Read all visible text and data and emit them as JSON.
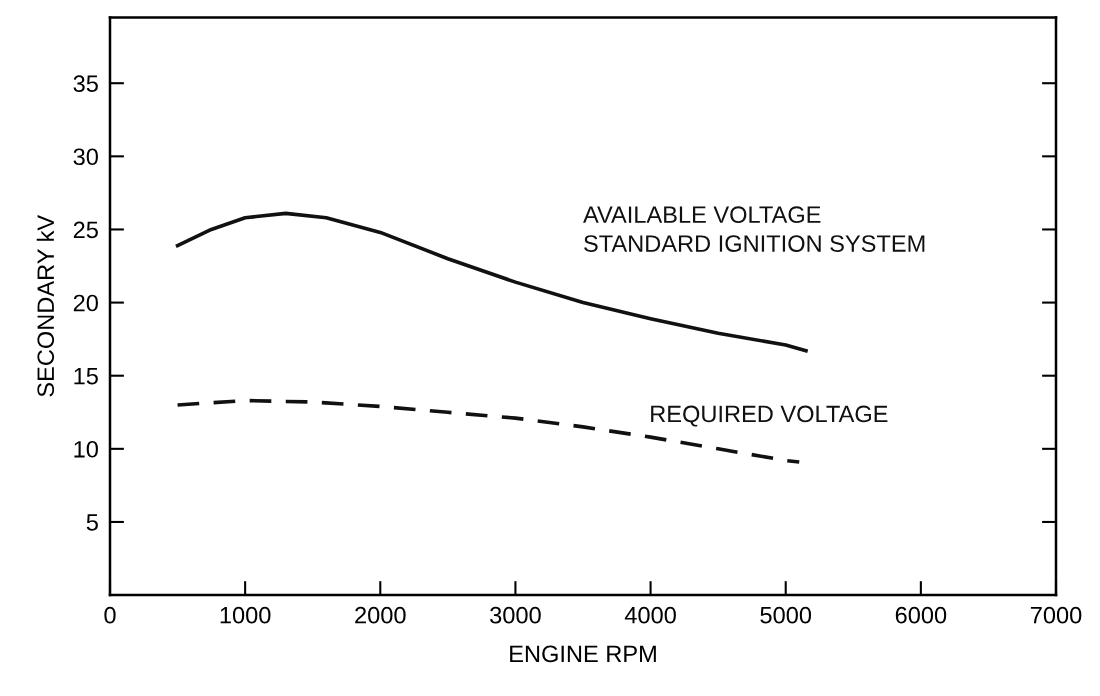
{
  "chart_data": {
    "type": "line",
    "xlabel": "ENGINE RPM",
    "ylabel": "SECONDARY kV",
    "xlim": [
      0,
      7000
    ],
    "xticks": [
      0,
      1000,
      2000,
      3000,
      4000,
      5000,
      6000,
      7000
    ],
    "ylim": [
      0,
      39.5
    ],
    "yticks": [
      5,
      10,
      15,
      20,
      25,
      30,
      35
    ],
    "grid": false,
    "legend": false,
    "marker": "none",
    "series": [
      {
        "name": "AVAILABLE VOLTAGE\nSTANDARD IGNITION SYSTEM",
        "color": "#111111",
        "line_style": "solid",
        "x": [
          500,
          750,
          1000,
          1300,
          1600,
          2000,
          2500,
          3000,
          3500,
          4000,
          4500,
          5000,
          5150
        ],
        "values": [
          23.9,
          25.0,
          25.8,
          26.1,
          25.8,
          24.8,
          23.0,
          21.4,
          20.0,
          18.9,
          17.9,
          17.1,
          16.7
        ]
      },
      {
        "name": "REQUIRED VOLTAGE",
        "color": "#111111",
        "line_style": "dashed",
        "x": [
          500,
          1000,
          1500,
          2000,
          2500,
          3000,
          3500,
          4000,
          4500,
          5000,
          5100
        ],
        "values": [
          13.0,
          13.3,
          13.2,
          12.9,
          12.5,
          12.1,
          11.5,
          10.8,
          10.0,
          9.2,
          9.1
        ]
      }
    ]
  }
}
